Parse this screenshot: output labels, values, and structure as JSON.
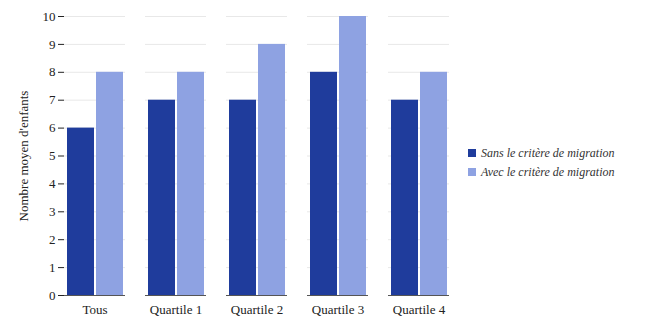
{
  "chart_data": {
    "type": "bar",
    "y_label": "Nombre moyen d'enfants",
    "categories": [
      "Tous",
      "Quartile 1",
      "Quartile 2",
      "Quartile 3",
      "Quartile 4"
    ],
    "series": [
      {
        "name": "Sans le critère de migration",
        "color": "#1f3c9c",
        "values": [
          6,
          7,
          7,
          8,
          7
        ]
      },
      {
        "name": "Avec le critère de migration",
        "color": "#8ea2e2",
        "values": [
          8,
          8,
          9,
          10,
          8
        ]
      }
    ],
    "ylim": [
      0,
      10
    ],
    "yticks": [
      0,
      1,
      2,
      3,
      4,
      5,
      6,
      7,
      8,
      9,
      10
    ],
    "grid": true,
    "legend": "right"
  }
}
